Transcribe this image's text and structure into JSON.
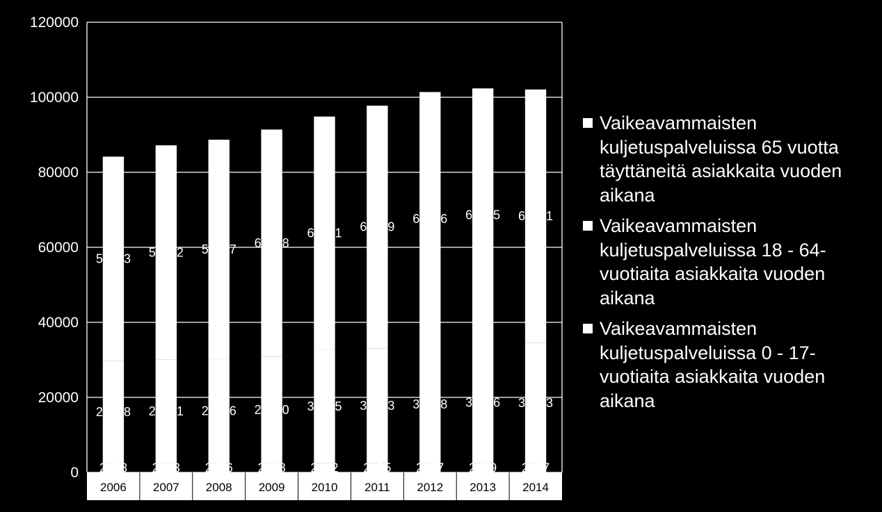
{
  "chart_data": {
    "type": "bar",
    "stacked": true,
    "categories": [
      "2006",
      "2007",
      "2008",
      "2009",
      "2010",
      "2011",
      "2012",
      "2013",
      "2014"
    ],
    "series": [
      {
        "name": "Vaikeavammaisten kuljetuspalveluissa 0 - 17-vuotiaita asiakkaita vuoden aikana",
        "values": [
          2478,
          2483,
          2476,
          2488,
          2442,
          2455,
          2477,
          2459,
          2477
        ],
        "labels": [
          "2478",
          "2483",
          "2476",
          "2488",
          "2442",
          "2455",
          "2477",
          "2459",
          "2477"
        ]
      },
      {
        "name": "Vaikeavammaisten kuljetuspalveluissa 18 - 64-vuotiaita asiakkaita vuoden aikana",
        "values": [
          27278,
          27641,
          27786,
          28390,
          30325,
          30643,
          31318,
          32356,
          32123
        ],
        "labels": [
          "27278",
          "27641",
          "27786",
          "28390",
          "30325",
          "30643",
          "31318",
          "32356",
          "32123"
        ]
      },
      {
        "name": "Vaikeavammaisten kuljetuspalveluissa 65 vuotta täyttäneitä asiakkaita vuoden aikana",
        "values": [
          54413,
          57062,
          58417,
          60518,
          62091,
          64649,
          67596,
          67545,
          67471
        ],
        "labels": [
          "54413",
          "57062",
          "58417",
          "60518",
          "62091",
          "64649",
          "67596",
          "67545",
          "67471"
        ]
      }
    ],
    "y_ticks": [
      "0",
      "20000",
      "40000",
      "60000",
      "80000",
      "100000",
      "120000"
    ],
    "ylim": [
      0,
      120000
    ],
    "grid": true,
    "legend_position": "right",
    "legend": [
      "Vaikeavammaisten kuljetuspalveluissa 65 vuotta täyttäneitä asiakkaita vuoden aikana",
      "Vaikeavammaisten kuljetuspalveluissa 18 - 64-vuotiaita asiakkaita vuoden aikana",
      "Vaikeavammaisten kuljetuspalveluissa 0 - 17-vuotiaita asiakkaita vuoden aikana"
    ],
    "colors": {
      "background": "#000000",
      "bar": "#ffffff",
      "gridline": "#ffffff",
      "axis_label": "#ffffff",
      "category_band": "#ffffff",
      "category_label": "#000000"
    }
  }
}
